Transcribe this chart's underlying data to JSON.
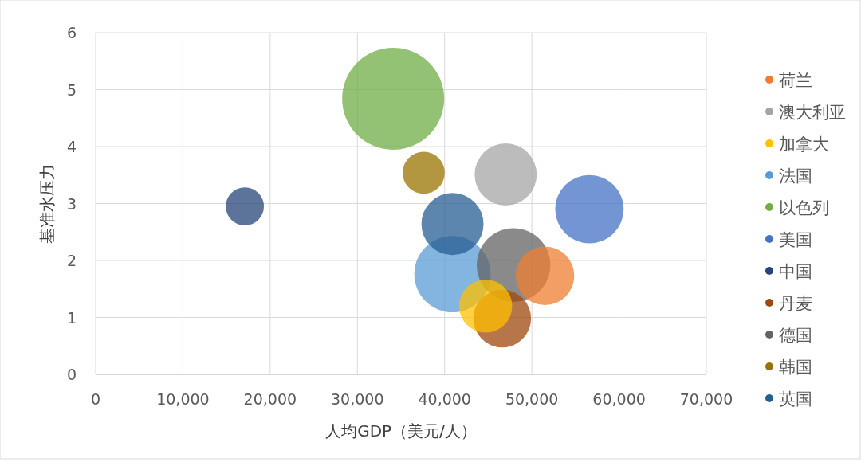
{
  "chart_data": {
    "type": "bubble",
    "xlabel": "人均GDP（美元/人）",
    "ylabel": "基准水压力",
    "xlim": [
      0,
      70000
    ],
    "xticks": [
      {
        "value": 0,
        "label": "0"
      },
      {
        "value": 10000,
        "label": "10,000"
      },
      {
        "value": 20000,
        "label": "20,000"
      },
      {
        "value": 30000,
        "label": "30,000"
      },
      {
        "value": 40000,
        "label": "40,000"
      },
      {
        "value": 50000,
        "label": "50,000"
      },
      {
        "value": 60000,
        "label": "60,000"
      },
      {
        "value": 70000,
        "label": "70,000"
      }
    ],
    "ylim": [
      0,
      6
    ],
    "yticks": [
      0,
      1,
      2,
      3,
      4,
      5,
      6
    ],
    "grid": true,
    "legend": "right",
    "series": [
      {
        "name": "荷兰",
        "color": "#ed7d31",
        "x": [
          51500
        ],
        "values": [
          1.73
        ],
        "sizes": [
          0.33
        ]
      },
      {
        "name": "澳大利亚",
        "color": "#a5a5a5",
        "x": [
          47000
        ],
        "values": [
          3.51
        ],
        "sizes": [
          0.37
        ]
      },
      {
        "name": "加拿大",
        "color": "#ffc000",
        "x": [
          44700
        ],
        "values": [
          1.2
        ],
        "sizes": [
          0.27
        ]
      },
      {
        "name": "法国",
        "color": "#5b9bd5",
        "x": [
          40900
        ],
        "values": [
          1.76
        ],
        "sizes": [
          0.56
        ]
      },
      {
        "name": "以色列",
        "color": "#70ad47",
        "x": [
          34100
        ],
        "values": [
          4.84
        ],
        "sizes": [
          1
        ]
      },
      {
        "name": "美国",
        "color": "#4472c4",
        "x": [
          56600
        ],
        "values": [
          2.9
        ],
        "sizes": [
          0.45
        ]
      },
      {
        "name": "中国",
        "color": "#264478",
        "x": [
          17100
        ],
        "values": [
          2.95
        ],
        "sizes": [
          0.14
        ]
      },
      {
        "name": "丹麦",
        "color": "#9e480e",
        "x": [
          46600
        ],
        "values": [
          0.98
        ],
        "sizes": [
          0.32
        ]
      },
      {
        "name": "德国",
        "color": "#636363",
        "x": [
          47900
        ],
        "values": [
          1.92
        ],
        "sizes": [
          0.52
        ]
      },
      {
        "name": "韩国",
        "color": "#997300",
        "x": [
          37600
        ],
        "values": [
          3.54
        ],
        "sizes": [
          0.17
        ]
      },
      {
        "name": "英国",
        "color": "#255e91",
        "x": [
          40900
        ],
        "values": [
          2.64
        ],
        "sizes": [
          0.37
        ]
      }
    ]
  }
}
